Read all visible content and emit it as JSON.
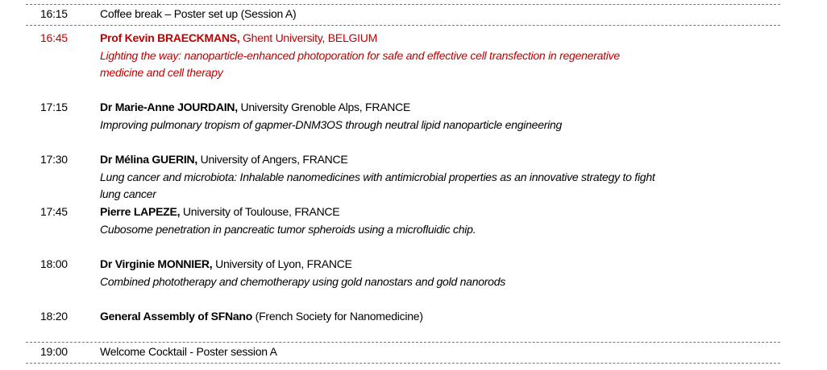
{
  "accent_color": "#c00000",
  "items": [
    {
      "time": "16:15",
      "text": "Coffee break – Poster set up (Session A)"
    },
    {
      "time": "16:45",
      "speaker": "Prof Kevin BRAECKMANS,",
      "affiliation": " Ghent University, BELGIUM",
      "title_lines": [
        "Lighting the way: nanoparticle-enhanced photoporation for safe and effective cell transfection in regenerative",
        "medicine and cell therapy"
      ]
    },
    {
      "time": "17:15",
      "speaker": "Dr Marie-Anne JOURDAIN,",
      "affiliation": " University Grenoble Alps, FRANCE",
      "title_lines": [
        "Improving pulmonary tropism of gapmer-DNM3OS through neutral lipid nanoparticle engineering"
      ]
    },
    {
      "time": "17:30",
      "speaker": "Dr Mélina GUERIN,",
      "affiliation": " University of Angers, FRANCE",
      "title_lines": [
        "Lung cancer and microbiota: Inhalable nanomedicines with antimicrobial properties as an innovative strategy to fight",
        "lung cancer"
      ]
    },
    {
      "time": "17:45",
      "speaker": "Pierre LAPEZE,",
      "affiliation": " University of Toulouse, FRANCE",
      "title_lines": [
        "Cubosome penetration in pancreatic tumor spheroids using a microfluidic chip."
      ]
    },
    {
      "time": "18:00",
      "speaker": "Dr Virginie MONNIER,",
      "affiliation": " University of Lyon, FRANCE",
      "title_lines": [
        "Combined phototherapy and chemotherapy using gold nanostars and gold nanorods"
      ]
    },
    {
      "time": "18:20",
      "speaker": "General Assembly of SFNano",
      "affiliation": " (French Society for Nanomedicine)"
    },
    {
      "time": "19:00",
      "text": "Welcome Cocktail - Poster session A"
    }
  ]
}
